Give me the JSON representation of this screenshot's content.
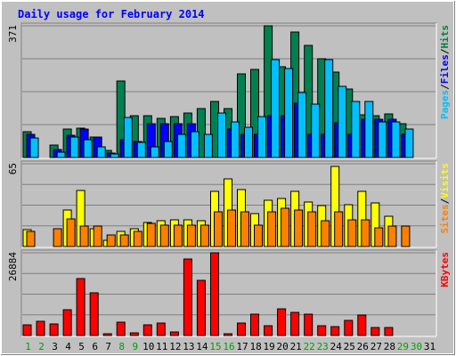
{
  "chart_data": {
    "type": "bar",
    "title": "Daily usage for February 2014",
    "days": [
      "1",
      "2",
      "3",
      "4",
      "5",
      "6",
      "7",
      "8",
      "9",
      "10",
      "11",
      "12",
      "13",
      "14",
      "15",
      "16",
      "17",
      "18",
      "19",
      "20",
      "21",
      "22",
      "23",
      "24",
      "25",
      "26",
      "27",
      "28",
      "29",
      "30",
      "31"
    ],
    "weekend_days": [
      1,
      2,
      8,
      9,
      15,
      16,
      22,
      23,
      29,
      30
    ],
    "panels": [
      {
        "id": "top",
        "ymax_label": "371",
        "ylim": [
          0,
          371
        ],
        "legend": [
          "Pages",
          "/",
          "Files",
          "/",
          "Hits"
        ],
        "legend_colors": [
          "#00c0ff",
          "#000000",
          "#0000ff",
          "#000000",
          "#008040"
        ],
        "series": [
          {
            "name": "Hits",
            "color": "#008050",
            "values": [
              73,
              0,
              36,
              80,
              82,
              57,
              20,
              216,
              117,
              117,
              110,
              115,
              126,
              138,
              159,
              138,
              235,
              247,
              371,
              255,
              353,
              316,
              277,
              240,
              193,
              120,
              118,
              123,
              95,
              0,
              0
            ]
          },
          {
            "name": "Files",
            "color": "#0000ff",
            "values": [
              65,
              0,
              23,
              62,
              80,
              57,
              13,
              50,
              45,
              95,
              95,
              95,
              95,
              0,
              0,
              80,
              66,
              66,
              117,
              117,
              152,
              66,
              66,
              98,
              66,
              108,
              108,
              108,
              66,
              0,
              0
            ]
          },
          {
            "name": "Pages",
            "color": "#00c0ff",
            "values": [
              55,
              0,
              15,
              58,
              50,
              30,
              10,
              112,
              43,
              30,
              45,
              65,
              72,
              65,
              125,
              100,
              84,
              115,
              275,
              250,
              182,
              150,
              275,
              200,
              158,
              158,
              100,
              100,
              80,
              0,
              0
            ]
          }
        ]
      },
      {
        "id": "middle",
        "ymax_label": "65",
        "ylim": [
          0,
          65
        ],
        "legend": [
          "Sites",
          "/",
          "Visits"
        ],
        "legend_colors": [
          "#ff8000",
          "#000000",
          "#ffff00"
        ],
        "series": [
          {
            "name": "Visits",
            "color": "#ffff00",
            "values": [
              13,
              0,
              0,
              29,
              44,
              14,
              5,
              12,
              14,
              19,
              20,
              21,
              21,
              20,
              43,
              53,
              45,
              26,
              36,
              38,
              43,
              35,
              32,
              63,
              33,
              43,
              34,
              24,
              0,
              0,
              0
            ]
          },
          {
            "name": "Sites",
            "color": "#ff8000",
            "values": [
              12,
              0,
              14,
              22,
              16,
              16,
              9,
              9,
              12,
              18,
              17,
              17,
              17,
              17,
              27,
              29,
              27,
              17,
              27,
              30,
              29,
              27,
              20,
              27,
              21,
              21,
              15,
              16,
              16,
              0,
              0
            ]
          }
        ]
      },
      {
        "id": "bottom",
        "ymax_label": "26884",
        "ylim": [
          0,
          26884
        ],
        "legend": [
          "KBytes"
        ],
        "legend_colors": [
          "#ff0000"
        ],
        "series": [
          {
            "name": "KBytes",
            "color": "#ff0000",
            "values": [
              3400,
              4700,
              3800,
              8500,
              18500,
              14000,
              700,
              4300,
              950,
              3500,
              4000,
              1250,
              25000,
              18000,
              27000,
              650,
              4000,
              6800,
              3100,
              8700,
              7500,
              7000,
              3300,
              2900,
              5000,
              6600,
              2600,
              2700,
              0,
              0,
              0
            ]
          }
        ]
      }
    ]
  }
}
